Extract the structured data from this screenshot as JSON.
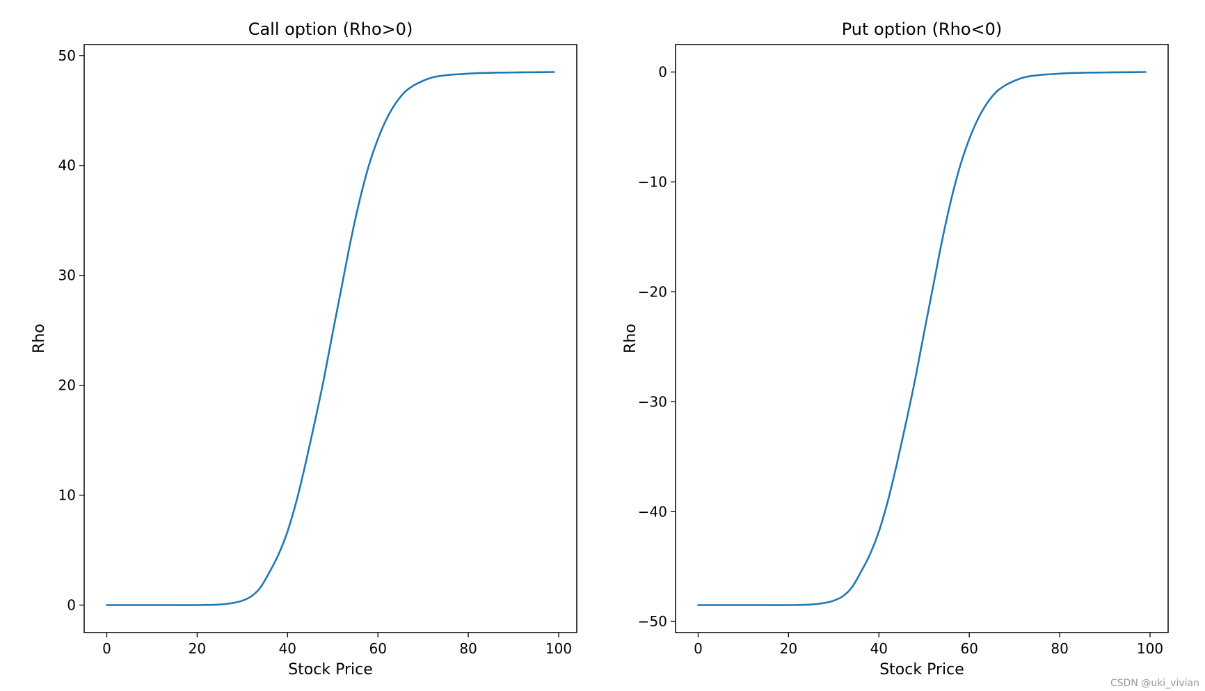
{
  "chart_data": [
    {
      "type": "line",
      "title": "Call option (Rho>0)",
      "xlabel": "Stock Price",
      "ylabel": "Rho",
      "xlim": [
        -5,
        104
      ],
      "ylim": [
        -2.5,
        51
      ],
      "xticks": [
        0,
        20,
        40,
        60,
        80,
        100
      ],
      "yticks": [
        0,
        10,
        20,
        30,
        40,
        50
      ],
      "grid": false,
      "color": "#1f77b4",
      "series": [
        {
          "x": [
            0,
            5,
            10,
            15,
            20,
            25,
            28,
            30,
            32,
            34,
            36,
            38,
            40,
            42,
            44,
            46,
            48,
            50,
            52,
            54,
            56,
            58,
            60,
            62,
            64,
            66,
            68,
            70,
            72,
            74,
            76,
            78,
            80,
            82,
            84,
            86,
            88,
            90,
            92,
            95,
            99
          ],
          "values": [
            0,
            0,
            0,
            0,
            0,
            0.05,
            0.2,
            0.4,
            0.8,
            1.6,
            3.0,
            4.6,
            6.7,
            9.5,
            12.9,
            16.6,
            20.5,
            24.8,
            29.0,
            33.2,
            36.9,
            40.0,
            42.4,
            44.3,
            45.7,
            46.7,
            47.3,
            47.7,
            48.0,
            48.15,
            48.25,
            48.3,
            48.35,
            48.4,
            48.42,
            48.44,
            48.45,
            48.46,
            48.47,
            48.48,
            48.5
          ]
        }
      ]
    },
    {
      "type": "line",
      "title": "Put option (Rho<0)",
      "xlabel": "Stock Price",
      "ylabel": "Rho",
      "xlim": [
        -5,
        104
      ],
      "ylim": [
        -51,
        2.5
      ],
      "xticks": [
        0,
        20,
        40,
        60,
        80,
        100
      ],
      "yticks": [
        0,
        -10,
        -20,
        -30,
        -40,
        -50
      ],
      "ytick_labels": [
        "0",
        "−10",
        "−20",
        "−30",
        "−40",
        "−50"
      ],
      "grid": false,
      "color": "#1f77b4",
      "series": [
        {
          "x": [
            0,
            5,
            10,
            15,
            20,
            25,
            28,
            30,
            32,
            34,
            36,
            38,
            40,
            42,
            44,
            46,
            48,
            50,
            52,
            54,
            56,
            58,
            60,
            62,
            64,
            66,
            68,
            70,
            72,
            74,
            76,
            78,
            80,
            82,
            84,
            86,
            88,
            90,
            92,
            95,
            99
          ],
          "values": [
            -48.5,
            -48.5,
            -48.5,
            -48.5,
            -48.5,
            -48.45,
            -48.3,
            -48.1,
            -47.7,
            -46.9,
            -45.5,
            -43.9,
            -41.8,
            -39.0,
            -35.6,
            -31.9,
            -28.0,
            -23.7,
            -19.5,
            -15.3,
            -11.6,
            -8.5,
            -6.1,
            -4.2,
            -2.8,
            -1.8,
            -1.2,
            -0.8,
            -0.5,
            -0.35,
            -0.25,
            -0.2,
            -0.15,
            -0.1,
            -0.08,
            -0.06,
            -0.05,
            -0.04,
            -0.03,
            -0.02,
            0
          ]
        }
      ]
    }
  ],
  "watermark": "CSDN @uki_vivian"
}
